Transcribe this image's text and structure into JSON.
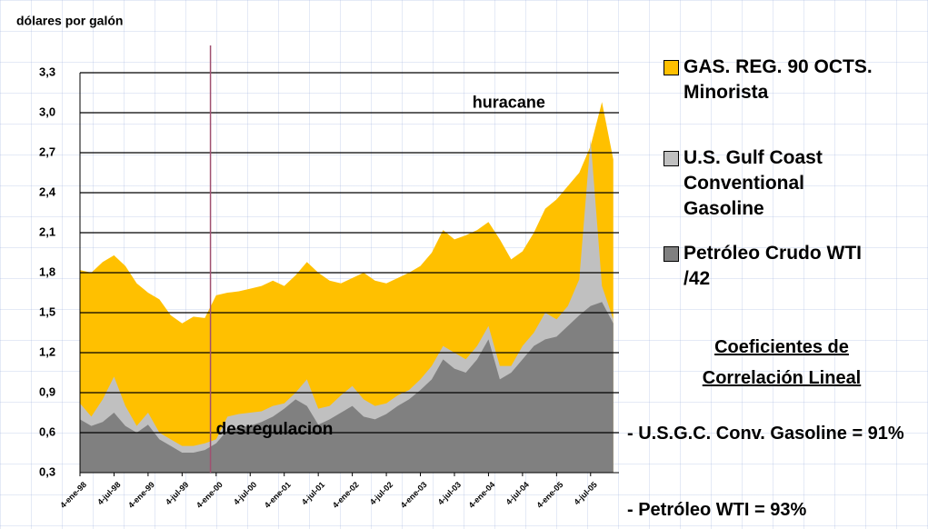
{
  "chart_data": {
    "type": "area",
    "y_label": "dólares por galón",
    "x": [
      0,
      2,
      4,
      6,
      8,
      10,
      12,
      14,
      16,
      18,
      20,
      22,
      24,
      26,
      28,
      30,
      32,
      34,
      36,
      38,
      40,
      42,
      44,
      46,
      48,
      50,
      52,
      54,
      56,
      58,
      60,
      62,
      64,
      66,
      68,
      70,
      72,
      74,
      76,
      78,
      80,
      82,
      84,
      86,
      88,
      90,
      92,
      94
    ],
    "xlim": [
      0,
      95
    ],
    "xticks": [
      {
        "value": 0,
        "label": "4-ene-98"
      },
      {
        "value": 6,
        "label": "4-jul-98"
      },
      {
        "value": 12,
        "label": "4-ene-99"
      },
      {
        "value": 18,
        "label": "4-jul-99"
      },
      {
        "value": 24,
        "label": "4-ene-00"
      },
      {
        "value": 30,
        "label": "4-jul-00"
      },
      {
        "value": 36,
        "label": "4-ene-01"
      },
      {
        "value": 42,
        "label": "4-jul-01"
      },
      {
        "value": 48,
        "label": "4-ene-02"
      },
      {
        "value": 54,
        "label": "4-jul-02"
      },
      {
        "value": 60,
        "label": "4-ene-03"
      },
      {
        "value": 66,
        "label": "4-jul-03"
      },
      {
        "value": 72,
        "label": "4-ene-04"
      },
      {
        "value": 78,
        "label": "4-jul-04"
      },
      {
        "value": 84,
        "label": "4-ene-05"
      },
      {
        "value": 90,
        "label": "4-jul-05"
      }
    ],
    "ylim": [
      0.3,
      3.3
    ],
    "yticks": [
      {
        "value": 0.3,
        "label": "0,3"
      },
      {
        "value": 0.6,
        "label": "0,6"
      },
      {
        "value": 0.9,
        "label": "0,9"
      },
      {
        "value": 1.2,
        "label": "1,2"
      },
      {
        "value": 1.5,
        "label": "1,5"
      },
      {
        "value": 1.8,
        "label": "1,8"
      },
      {
        "value": 2.1,
        "label": "2,1"
      },
      {
        "value": 2.4,
        "label": "2,4"
      },
      {
        "value": 2.7,
        "label": "2,7"
      },
      {
        "value": 3.0,
        "label": "3,0"
      },
      {
        "value": 3.3,
        "label": "3,3"
      }
    ],
    "grid": true,
    "series": [
      {
        "name": "GAS. REG. 90 OCTS. Minorista",
        "color": "#ffc000",
        "values": [
          1.82,
          1.8,
          1.88,
          1.93,
          1.85,
          1.72,
          1.65,
          1.6,
          1.48,
          1.42,
          1.47,
          1.46,
          1.63,
          1.65,
          1.66,
          1.68,
          1.7,
          1.74,
          1.7,
          1.78,
          1.88,
          1.8,
          1.74,
          1.72,
          1.76,
          1.8,
          1.74,
          1.72,
          1.76,
          1.8,
          1.85,
          1.95,
          2.12,
          2.05,
          2.08,
          2.12,
          2.18,
          2.05,
          1.9,
          1.96,
          2.1,
          2.28,
          2.35,
          2.45,
          2.55,
          2.75,
          3.08,
          2.65
        ]
      },
      {
        "name": "U.S. Gulf Coast Conventional Gasoline",
        "color": "#c0c0c0",
        "values": [
          0.82,
          0.72,
          0.85,
          1.02,
          0.8,
          0.65,
          0.75,
          0.6,
          0.55,
          0.5,
          0.5,
          0.52,
          0.55,
          0.72,
          0.74,
          0.75,
          0.76,
          0.8,
          0.82,
          0.9,
          1.0,
          0.78,
          0.8,
          0.88,
          0.95,
          0.85,
          0.8,
          0.82,
          0.88,
          0.92,
          1.0,
          1.1,
          1.25,
          1.2,
          1.15,
          1.25,
          1.4,
          1.1,
          1.1,
          1.25,
          1.35,
          1.5,
          1.45,
          1.55,
          1.75,
          2.8,
          1.7,
          1.45
        ]
      },
      {
        "name": "Petróleo Crudo WTI /42",
        "color": "#808080",
        "values": [
          0.7,
          0.65,
          0.68,
          0.75,
          0.65,
          0.6,
          0.66,
          0.55,
          0.5,
          0.45,
          0.45,
          0.47,
          0.52,
          0.62,
          0.64,
          0.65,
          0.68,
          0.72,
          0.78,
          0.85,
          0.8,
          0.66,
          0.7,
          0.75,
          0.8,
          0.72,
          0.7,
          0.74,
          0.8,
          0.85,
          0.92,
          1.0,
          1.15,
          1.08,
          1.05,
          1.15,
          1.3,
          1.0,
          1.05,
          1.15,
          1.25,
          1.3,
          1.32,
          1.4,
          1.48,
          1.55,
          1.58,
          1.42
        ]
      }
    ],
    "event_line": {
      "x": 23,
      "label": "desregulacion",
      "color": "#a05070"
    },
    "peak_label": {
      "x": 82,
      "y": 3.07,
      "label": "huracane"
    },
    "correlation_title": "Coeficientes de Correlación Lineal",
    "annotations": [
      "- U.S.G.C. Conv. Gasoline = 91%",
      "- Petróleo WTI = 93%"
    ]
  }
}
